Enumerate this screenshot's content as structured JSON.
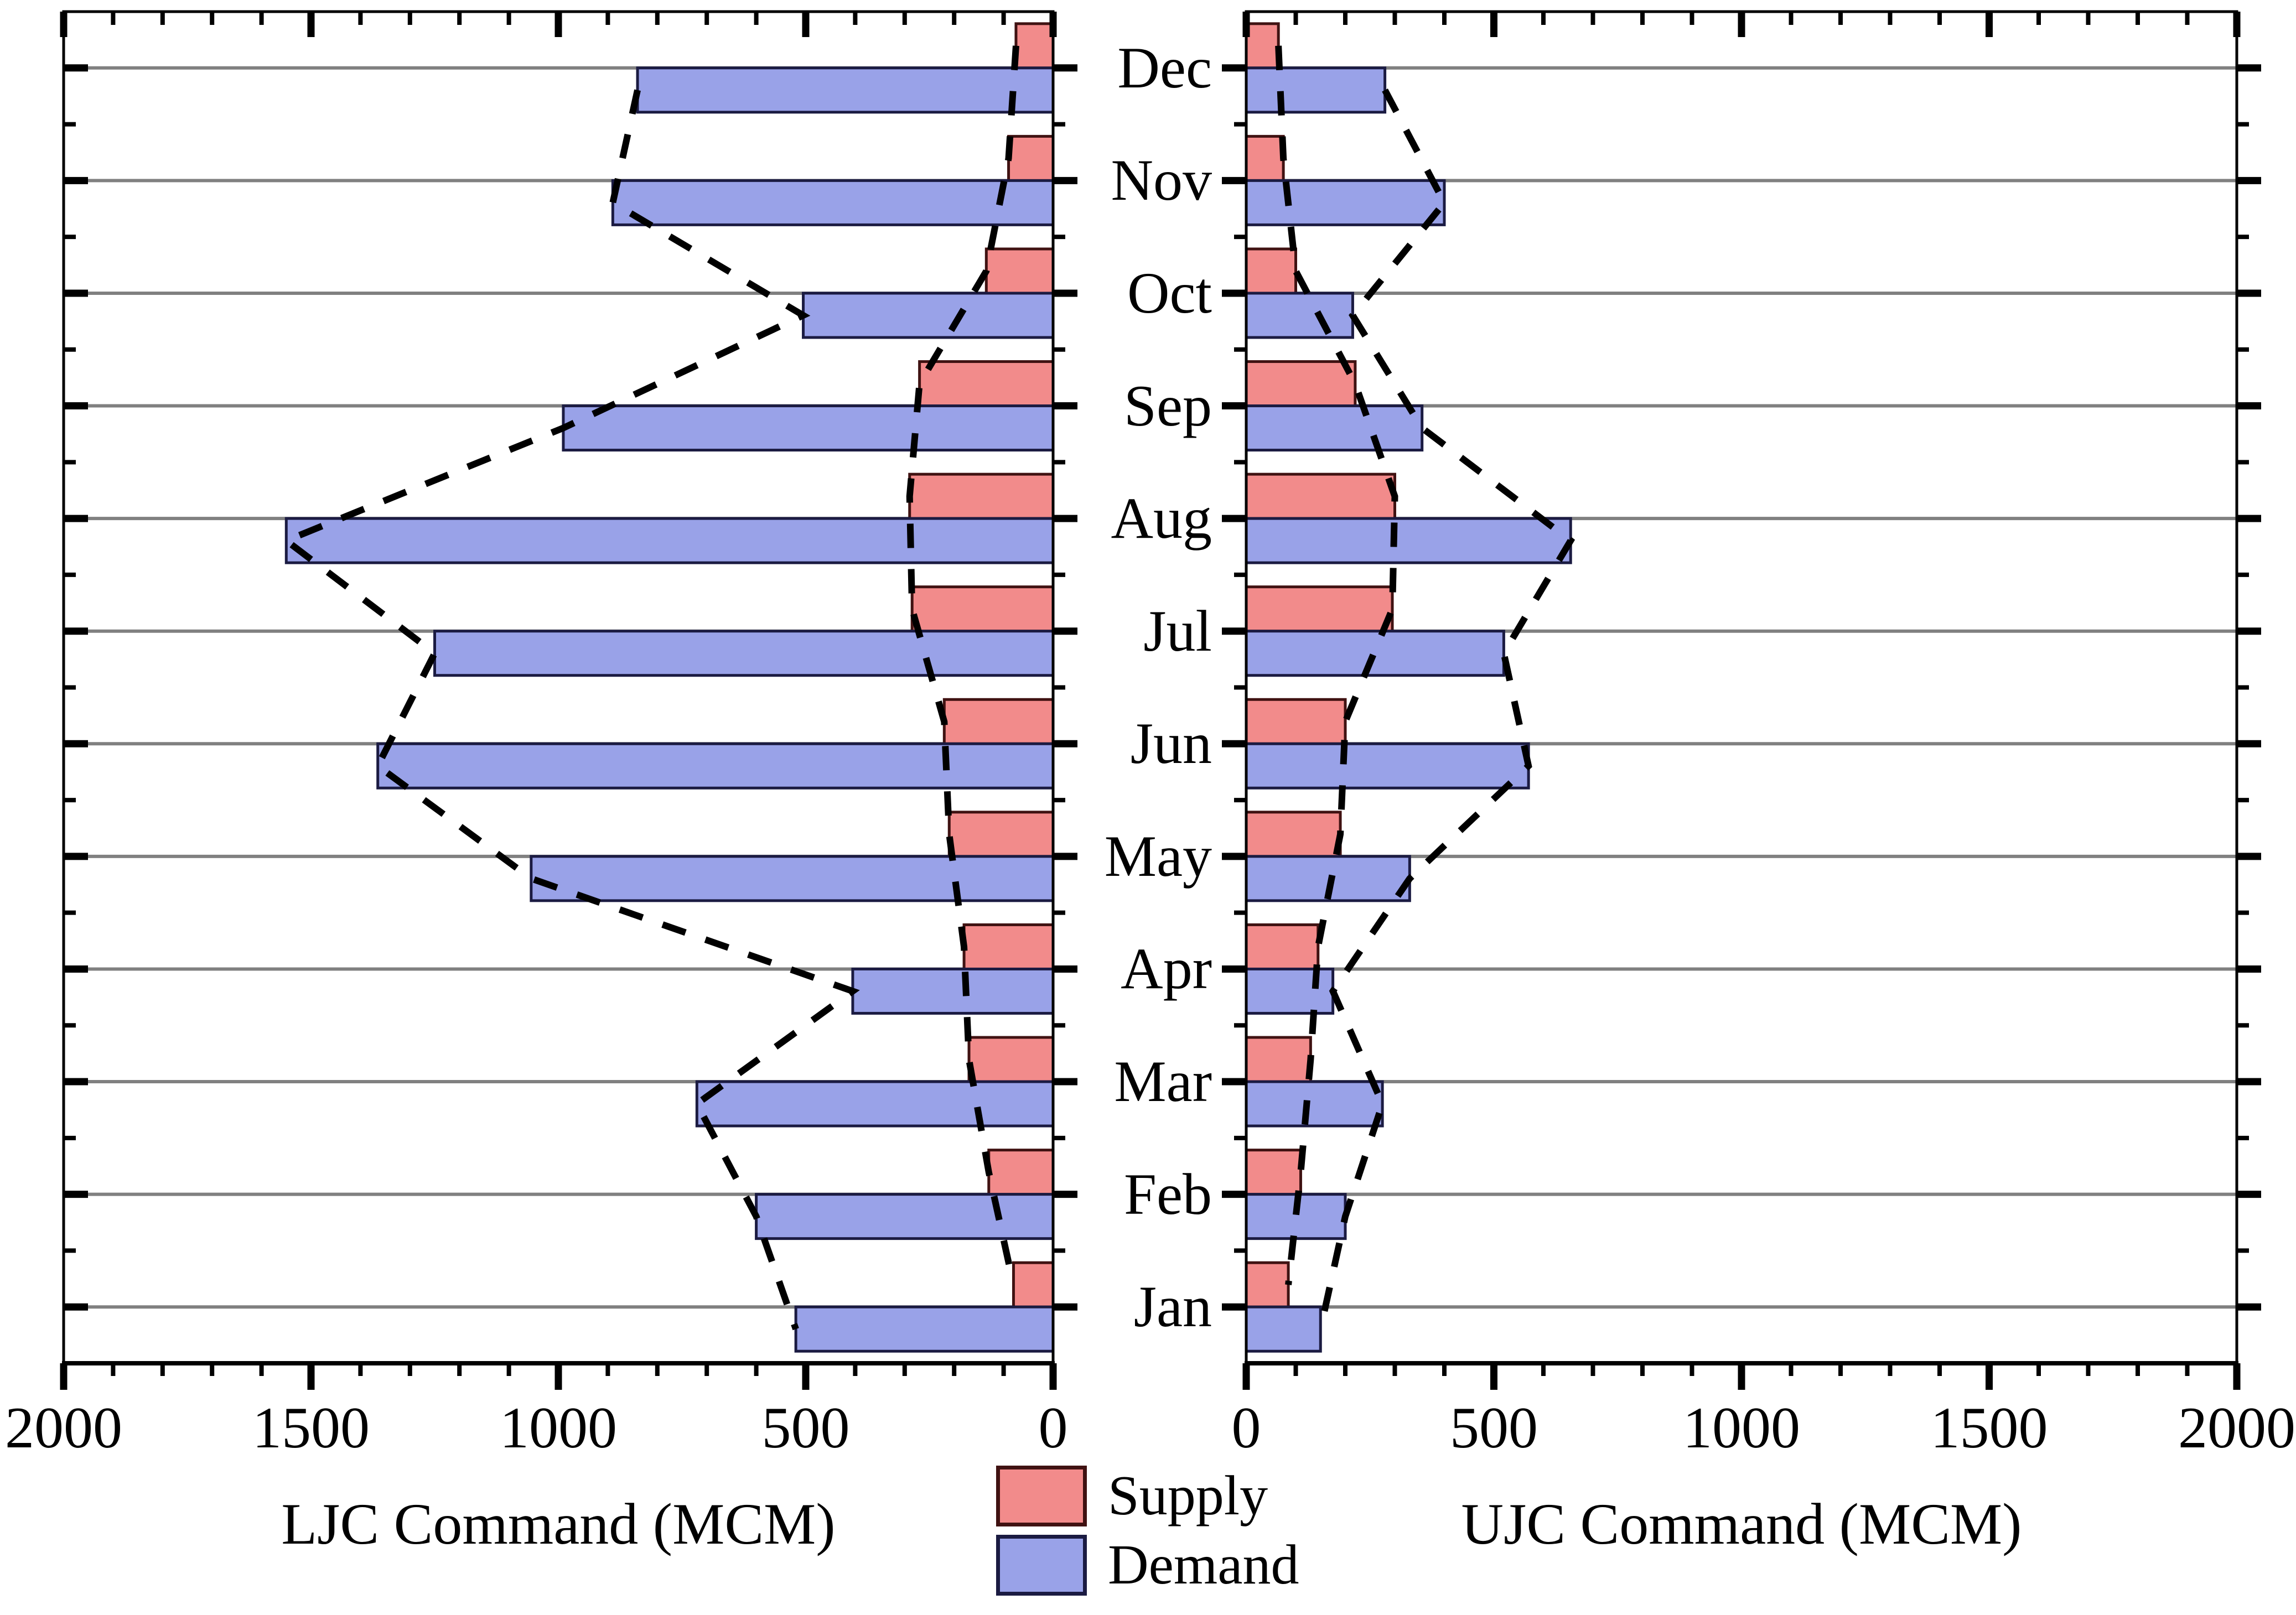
{
  "chart_data": {
    "type": "bar",
    "variant": "diverging-horizontal-monthly-pyramid",
    "unit": "MCM",
    "months_top_to_bottom": [
      "Dec",
      "Nov",
      "Oct",
      "Sep",
      "Aug",
      "Jul",
      "Jun",
      "May",
      "Apr",
      "Mar",
      "Feb",
      "Jan"
    ],
    "series": [
      {
        "name": "Supply",
        "fill": "#F28B8B",
        "border": "#401212"
      },
      {
        "name": "Demand",
        "fill": "#99A2E8",
        "border": "#1B1B42"
      }
    ],
    "panels": [
      {
        "id": "ljc",
        "axis_title": "LJC Command (MCM)",
        "direction": "values-increase-leftward",
        "xlim": [
          0,
          2000
        ],
        "tick_values": [
          2000,
          1500,
          1000,
          500,
          0
        ],
        "tick_labels": [
          "2000",
          "1500",
          "1000",
          "500",
          "0"
        ],
        "minor_tick_step": 100,
        "major_tick_step": 500,
        "supply": [
          75,
          90,
          135,
          270,
          290,
          285,
          220,
          210,
          180,
          170,
          130,
          80
        ],
        "demand": [
          840,
          890,
          505,
          990,
          1550,
          1250,
          1365,
          1055,
          405,
          720,
          600,
          520
        ]
      },
      {
        "id": "ujc",
        "axis_title": "UJC Command (MCM)",
        "direction": "values-increase-rightward",
        "xlim": [
          0,
          2000
        ],
        "tick_values": [
          0,
          500,
          1000,
          1500,
          2000
        ],
        "tick_labels": [
          "0",
          "500",
          "1000",
          "1500",
          "2000"
        ],
        "minor_tick_step": 100,
        "major_tick_step": 500,
        "supply": [
          65,
          75,
          100,
          220,
          300,
          295,
          200,
          190,
          145,
          130,
          110,
          85
        ],
        "demand": [
          280,
          400,
          215,
          355,
          655,
          520,
          570,
          330,
          175,
          275,
          200,
          150
        ]
      }
    ],
    "legend": {
      "items": [
        {
          "label": "Supply"
        },
        {
          "label": "Demand"
        }
      ]
    },
    "dashed_lines": "black dashed polylines connecting supply bar tips and demand bar tips in each panel",
    "gridline_color": "#808080",
    "frame_color": "#000000",
    "background": "#FFFFFF"
  }
}
